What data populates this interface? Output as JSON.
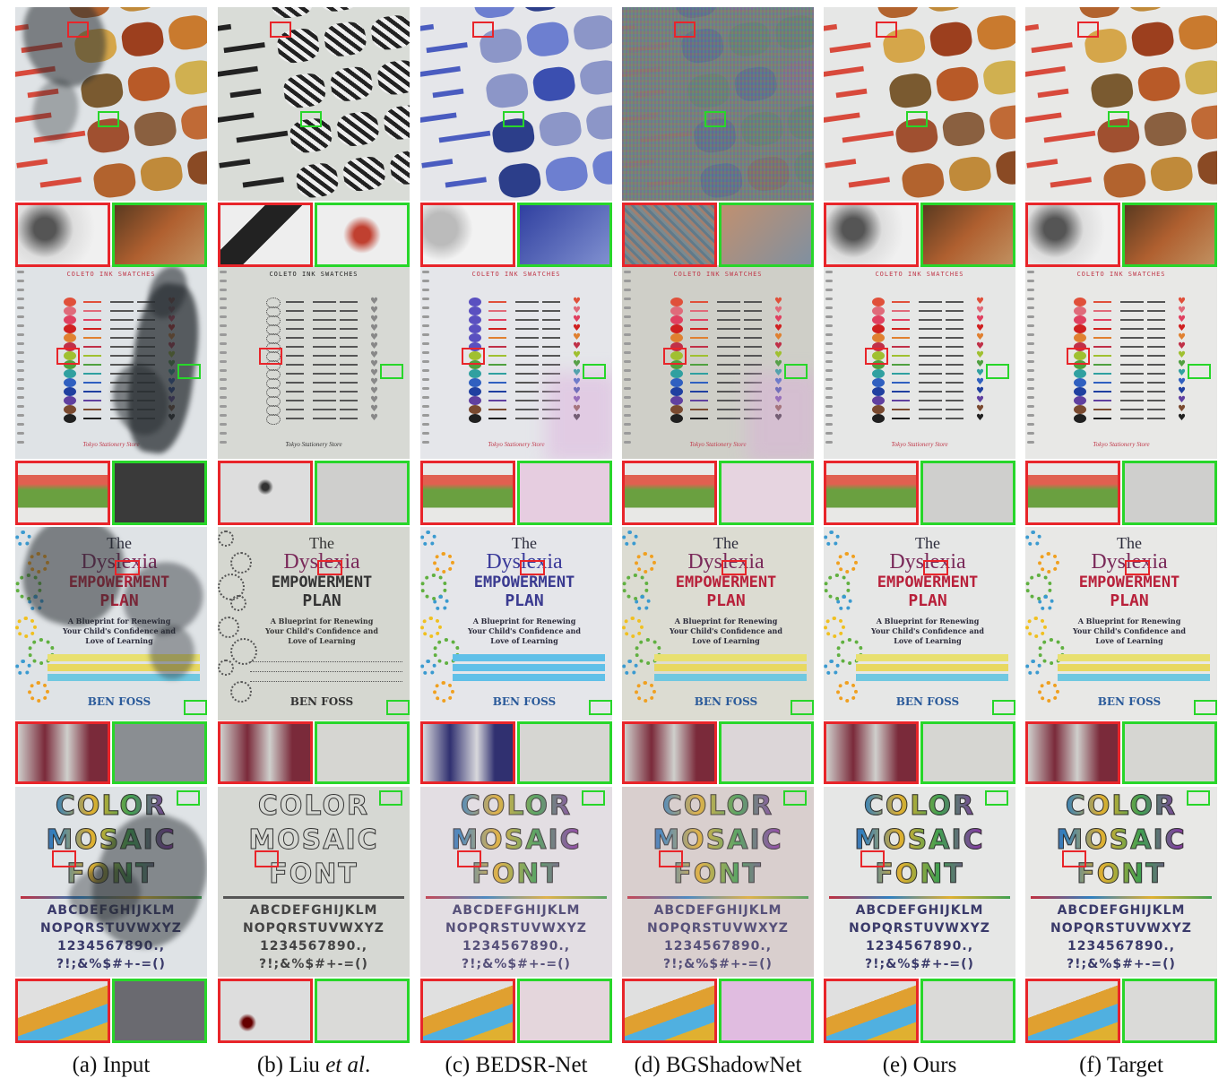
{
  "columns": [
    {
      "id": "a",
      "caption_pre": "(a) Input",
      "caption_italic": "",
      "caption_post": ""
    },
    {
      "id": "b",
      "caption_pre": "(b) Liu ",
      "caption_italic": "et al",
      "caption_post": "."
    },
    {
      "id": "c",
      "caption_pre": "(c) BEDSR-Net",
      "caption_italic": "",
      "caption_post": ""
    },
    {
      "id": "d",
      "caption_pre": "(d) BGShadowNet",
      "caption_italic": "",
      "caption_post": ""
    },
    {
      "id": "e",
      "caption_pre": "(e) Ours",
      "caption_italic": "",
      "caption_post": ""
    },
    {
      "id": "f",
      "caption_pre": "(f) Target",
      "caption_italic": "",
      "caption_post": ""
    }
  ],
  "ink_title": "COLETO INK SWATCHES",
  "ink_signature": "Tokyo Stationery Store",
  "book": {
    "the": "The",
    "dyslexia": "Dyslexia",
    "empowerment": "EMPOWERMENT",
    "plan": "PLAN",
    "sub1": "A Blueprint for Renewing",
    "sub2": "Your Child's Confidence and",
    "sub3": "Love of Learning",
    "author": "BEN FOSS"
  },
  "mosaic": {
    "l1": "COLOR",
    "l2": "MOSAIC",
    "l3": "FONT",
    "alpha1": "ABCDEFGHIJKLM",
    "alpha2": "NOPQRSTUVWXYZ",
    "digits": "1234567890.,",
    "symbols": "?!;&%$#+-=()"
  }
}
